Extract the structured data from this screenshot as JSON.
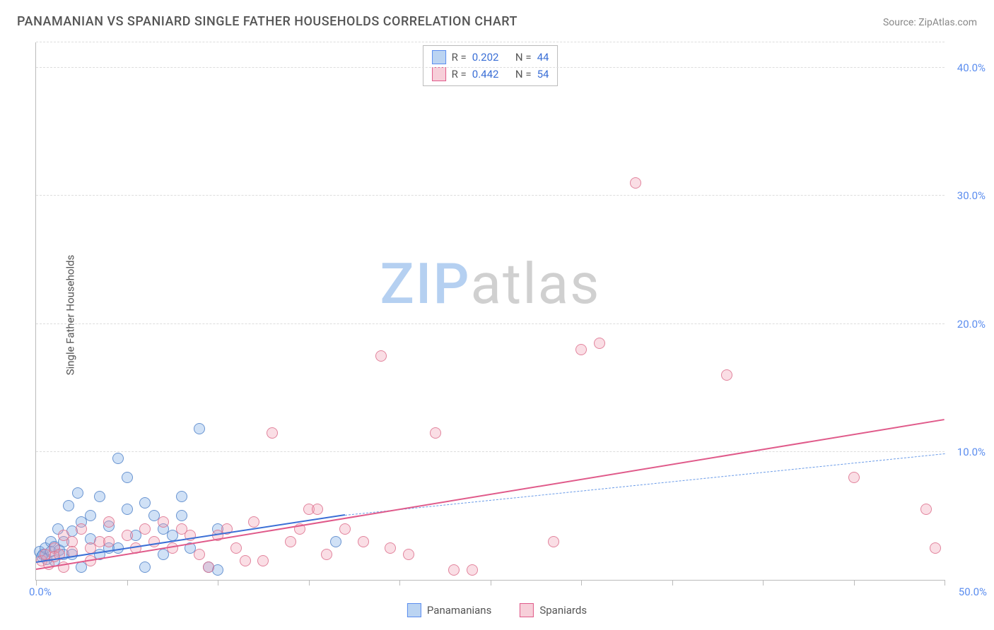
{
  "title": "PANAMANIAN VS SPANIARD SINGLE FATHER HOUSEHOLDS CORRELATION CHART",
  "source": "Source: ZipAtlas.com",
  "y_axis_label": "Single Father Households",
  "watermark": {
    "part1": "ZIP",
    "part2": "atlas"
  },
  "chart": {
    "type": "scatter",
    "xlim": [
      0,
      50
    ],
    "ylim": [
      0,
      42
    ],
    "x_ticks": [
      0,
      5,
      10,
      15,
      20,
      25,
      30,
      35,
      40,
      45,
      50
    ],
    "y_grid": [
      10,
      20,
      30,
      40,
      42
    ],
    "y_tick_labels": [
      {
        "v": 10,
        "label": "10.0%"
      },
      {
        "v": 20,
        "label": "20.0%"
      },
      {
        "v": 30,
        "label": "30.0%"
      },
      {
        "v": 40,
        "label": "40.0%"
      }
    ],
    "x_min_label": "0.0%",
    "x_max_label": "50.0%",
    "background_color": "#ffffff",
    "grid_color": "#dddddd",
    "axis_color": "#bbbbbb",
    "tick_label_color": "#5b8def",
    "axis_label_color": "#555555",
    "point_radius": 8,
    "series": [
      {
        "name": "Panamanians",
        "color_fill": "rgba(120,170,230,0.35)",
        "color_stroke": "rgba(80,130,200,0.8)",
        "css": "blue",
        "stats": {
          "R": "0.202",
          "N": "44"
        },
        "trend": {
          "x1": 0,
          "y1": 1.3,
          "x2": 17,
          "y2": 5.0,
          "x2_dash": 50,
          "y2_dash": 9.8
        },
        "points": [
          [
            0.2,
            2.2
          ],
          [
            0.3,
            1.8
          ],
          [
            0.4,
            2.0
          ],
          [
            0.5,
            2.5
          ],
          [
            0.6,
            1.6
          ],
          [
            0.8,
            3.0
          ],
          [
            0.8,
            2.2
          ],
          [
            1.0,
            2.6
          ],
          [
            1.0,
            1.5
          ],
          [
            1.2,
            4.0
          ],
          [
            1.3,
            2.3
          ],
          [
            1.5,
            3.0
          ],
          [
            1.5,
            2.0
          ],
          [
            1.8,
            5.8
          ],
          [
            2.0,
            3.8
          ],
          [
            2.0,
            2.0
          ],
          [
            2.3,
            6.8
          ],
          [
            2.5,
            4.5
          ],
          [
            2.5,
            1.0
          ],
          [
            3.0,
            5.0
          ],
          [
            3.0,
            3.2
          ],
          [
            3.5,
            6.5
          ],
          [
            3.5,
            2.0
          ],
          [
            4.0,
            4.2
          ],
          [
            4.0,
            2.5
          ],
          [
            4.5,
            9.5
          ],
          [
            4.5,
            2.5
          ],
          [
            5.0,
            8.0
          ],
          [
            5.0,
            5.5
          ],
          [
            5.5,
            3.5
          ],
          [
            6.0,
            6.0
          ],
          [
            6.0,
            1.0
          ],
          [
            6.5,
            5.0
          ],
          [
            7.0,
            4.0
          ],
          [
            7.0,
            2.0
          ],
          [
            7.5,
            3.5
          ],
          [
            8.0,
            6.5
          ],
          [
            8.0,
            5.0
          ],
          [
            8.5,
            2.5
          ],
          [
            9.0,
            11.8
          ],
          [
            9.5,
            1.0
          ],
          [
            10.0,
            4.0
          ],
          [
            10.0,
            0.8
          ],
          [
            16.5,
            3.0
          ]
        ]
      },
      {
        "name": "Spaniards",
        "color_fill": "rgba(240,160,180,0.35)",
        "color_stroke": "rgba(220,110,140,0.8)",
        "css": "pink",
        "stats": {
          "R": "0.442",
          "N": "54"
        },
        "trend": {
          "x1": 0,
          "y1": 0.8,
          "x2": 50,
          "y2": 12.5
        },
        "points": [
          [
            0.3,
            1.5
          ],
          [
            0.5,
            2.0
          ],
          [
            0.7,
            1.2
          ],
          [
            1.0,
            2.5
          ],
          [
            1.0,
            1.8
          ],
          [
            1.3,
            2.0
          ],
          [
            1.5,
            3.5
          ],
          [
            1.5,
            1.0
          ],
          [
            2.0,
            3.0
          ],
          [
            2.0,
            2.2
          ],
          [
            2.5,
            4.0
          ],
          [
            3.0,
            2.5
          ],
          [
            3.0,
            1.5
          ],
          [
            3.5,
            3.0
          ],
          [
            4.0,
            4.5
          ],
          [
            4.0,
            3.0
          ],
          [
            5.0,
            3.5
          ],
          [
            5.5,
            2.5
          ],
          [
            6.0,
            4.0
          ],
          [
            6.5,
            3.0
          ],
          [
            7.0,
            4.5
          ],
          [
            7.5,
            2.5
          ],
          [
            8.0,
            4.0
          ],
          [
            8.5,
            3.5
          ],
          [
            9.0,
            2.0
          ],
          [
            9.5,
            1.0
          ],
          [
            10.0,
            3.5
          ],
          [
            10.5,
            4.0
          ],
          [
            11.0,
            2.5
          ],
          [
            11.5,
            1.5
          ],
          [
            12.0,
            4.5
          ],
          [
            12.5,
            1.5
          ],
          [
            13.0,
            11.5
          ],
          [
            14.0,
            3.0
          ],
          [
            14.5,
            4.0
          ],
          [
            15.0,
            5.5
          ],
          [
            15.5,
            5.5
          ],
          [
            16.0,
            2.0
          ],
          [
            17.0,
            4.0
          ],
          [
            18.0,
            3.0
          ],
          [
            19.0,
            17.5
          ],
          [
            19.5,
            2.5
          ],
          [
            20.5,
            2.0
          ],
          [
            22.0,
            11.5
          ],
          [
            23.0,
            0.8
          ],
          [
            24.0,
            0.8
          ],
          [
            28.5,
            3.0
          ],
          [
            30.0,
            18.0
          ],
          [
            31.0,
            18.5
          ],
          [
            33.0,
            31.0
          ],
          [
            38.0,
            16.0
          ],
          [
            45.0,
            8.0
          ],
          [
            49.0,
            5.5
          ],
          [
            49.5,
            2.5
          ]
        ]
      }
    ]
  },
  "legend_top": {
    "rows": [
      {
        "swatch": "blue",
        "r_label": "R =",
        "r_val": "0.202",
        "n_label": "N =",
        "n_val": "44"
      },
      {
        "swatch": "pink",
        "r_label": "R =",
        "r_val": "0.442",
        "n_label": "N =",
        "n_val": "54"
      }
    ]
  },
  "legend_bottom": [
    {
      "swatch": "blue",
      "label": "Panamanians"
    },
    {
      "swatch": "pink",
      "label": "Spaniards"
    }
  ]
}
